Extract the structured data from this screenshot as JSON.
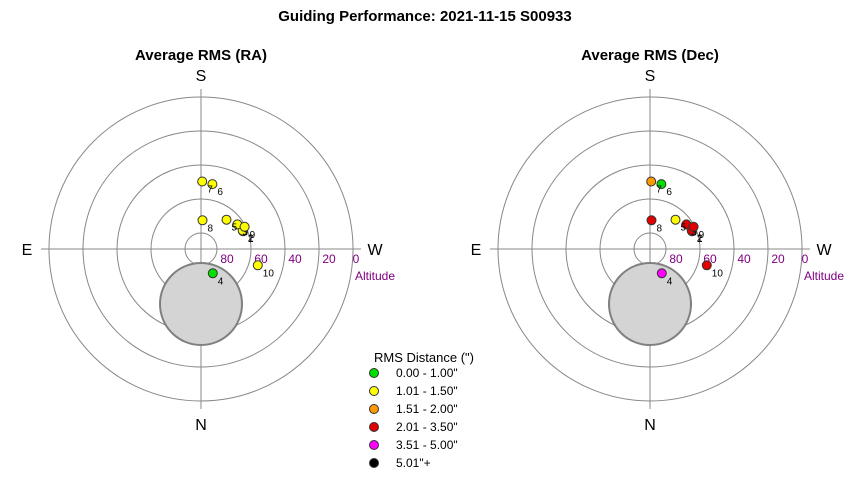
{
  "title": "Guiding Performance: 2021-11-15 S00933",
  "colors": {
    "ring": "#888888",
    "altitude_label": "#800080",
    "obstruction_fill": "#d4d4d4",
    "obstruction_stroke": "#808080"
  },
  "legend": {
    "title": "RMS Distance (\")",
    "items": [
      {
        "label": "0.00 - 1.00\"",
        "color": "#00e000"
      },
      {
        "label": "1.01 - 1.50\"",
        "color": "#ffff00"
      },
      {
        "label": "1.51 - 2.00\"",
        "color": "#ff9900"
      },
      {
        "label": "2.01 - 3.50\"",
        "color": "#e00000"
      },
      {
        "label": "3.51 - 5.00\"",
        "color": "#ff00ff"
      },
      {
        "label": "5.01\"+",
        "color": "#000000"
      }
    ]
  },
  "chart_data": [
    {
      "type": "scatter",
      "coordinate_system": "polar (altitude / azimuth)",
      "title": "Average RMS (RA)",
      "directions": {
        "top": "S",
        "bottom": "N",
        "left": "E",
        "right": "W"
      },
      "altitude_ticks": [
        "80",
        "60",
        "40",
        "20",
        "0"
      ],
      "altitude_label": "Altitude",
      "points": [
        {
          "id": "1",
          "alt": 63,
          "az": 247,
          "color": "#ffff00"
        },
        {
          "id": "2",
          "alt": 63,
          "az": 246,
          "color": "#ffff00"
        },
        {
          "id": "3",
          "alt": 64,
          "az": 236,
          "color": "#ffff00"
        },
        {
          "id": "4",
          "alt": 74,
          "az": 334,
          "color": "#00e000"
        },
        {
          "id": "5",
          "alt": 67,
          "az": 221,
          "color": "#ffff00"
        },
        {
          "id": "6",
          "alt": 51,
          "az": 190,
          "color": "#ffff00"
        },
        {
          "id": "7",
          "alt": 50,
          "az": 181,
          "color": "#ffff00"
        },
        {
          "id": "8",
          "alt": 73,
          "az": 183,
          "color": "#ffff00"
        },
        {
          "id": "9",
          "alt": 61,
          "az": 243,
          "color": "#ffff00"
        },
        {
          "id": "10",
          "alt": 55,
          "az": 286,
          "color": "#ffff00"
        }
      ]
    },
    {
      "type": "scatter",
      "coordinate_system": "polar (altitude / azimuth)",
      "title": "Average RMS (Dec)",
      "directions": {
        "top": "S",
        "bottom": "N",
        "left": "E",
        "right": "W"
      },
      "altitude_ticks": [
        "80",
        "60",
        "40",
        "20",
        "0"
      ],
      "altitude_label": "Altitude",
      "points": [
        {
          "id": "1",
          "alt": 63,
          "az": 247,
          "color": "#e00000"
        },
        {
          "id": "2",
          "alt": 63,
          "az": 246,
          "color": "#e00000"
        },
        {
          "id": "3",
          "alt": 64,
          "az": 236,
          "color": "#e00000"
        },
        {
          "id": "4",
          "alt": 74,
          "az": 334,
          "color": "#ff00ff"
        },
        {
          "id": "5",
          "alt": 67,
          "az": 221,
          "color": "#ffff00"
        },
        {
          "id": "6",
          "alt": 51,
          "az": 190,
          "color": "#00e000"
        },
        {
          "id": "7",
          "alt": 50,
          "az": 181,
          "color": "#ff9900"
        },
        {
          "id": "8",
          "alt": 73,
          "az": 183,
          "color": "#e00000"
        },
        {
          "id": "9",
          "alt": 61,
          "az": 243,
          "color": "#e00000"
        },
        {
          "id": "10",
          "alt": 55,
          "az": 286,
          "color": "#e00000"
        }
      ]
    }
  ]
}
